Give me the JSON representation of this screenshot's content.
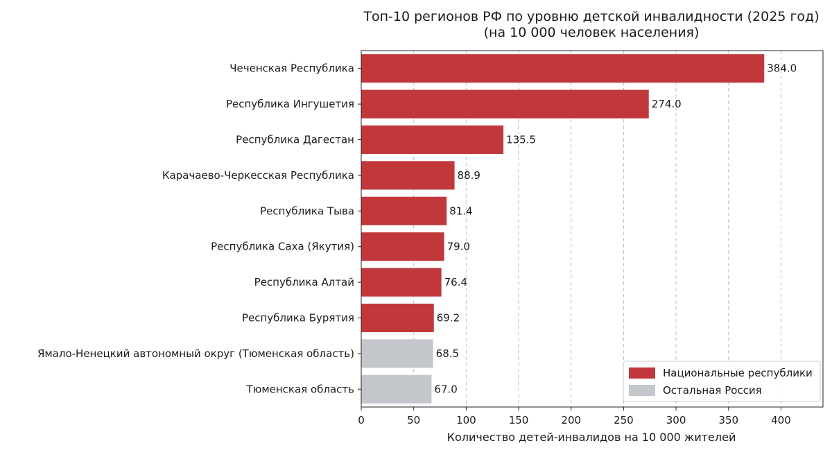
{
  "chart_data": {
    "type": "bar",
    "orientation": "horizontal",
    "title": "Топ-10 регионов РФ по уровню детской инвалидности (2025 год)",
    "subtitle": "(на 10 000 человек населения)",
    "xlabel": "Количество детей-инвалидов на 10 000 жителей",
    "ylabel": "",
    "xlim": [
      0,
      440
    ],
    "xticks": [
      0,
      50,
      100,
      150,
      200,
      250,
      300,
      350,
      400
    ],
    "grid": "x-dashed",
    "legend_position": "bottom-right",
    "categories": [
      "Чеченская Республика",
      "Республика Ингушетия",
      "Республика Дагестан",
      "Карачаево-Черкесская Республика",
      "Республика Тыва",
      "Республика Саха (Якутия)",
      "Республика Алтай",
      "Республика Бурятия",
      "Ямало-Ненецкий автономный округ (Тюменская область)",
      "Тюменская область"
    ],
    "values": [
      384.0,
      274.0,
      135.5,
      88.9,
      81.4,
      79.0,
      76.4,
      69.2,
      68.5,
      67.0
    ],
    "value_labels": [
      "384.0",
      "274.0",
      "135.5",
      "88.9",
      "81.4",
      "79.0",
      "76.4",
      "69.2",
      "68.5",
      "67.0"
    ],
    "groups": [
      0,
      0,
      0,
      0,
      0,
      0,
      0,
      0,
      1,
      1
    ],
    "series": [
      {
        "name": "Национальные республики",
        "color": "#c0383c"
      },
      {
        "name": "Остальная Россия",
        "color": "#c3c7cb"
      }
    ]
  }
}
